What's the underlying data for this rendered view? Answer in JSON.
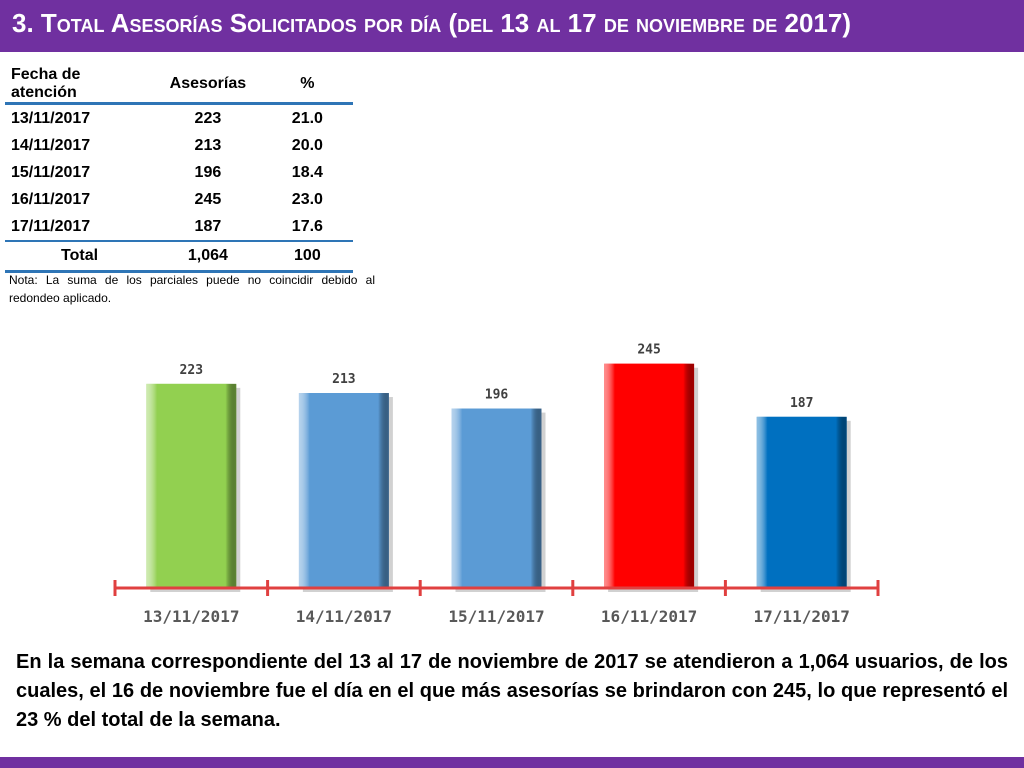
{
  "header": {
    "number": "3.",
    "title_main": "Total Asesorías Solicitados por día",
    "title_sub": "(del 13 al 17 de noviembre de 2017)"
  },
  "table": {
    "headers": [
      "Fecha de atención",
      "Asesorías",
      "%"
    ],
    "rows": [
      [
        "13/11/2017",
        "223",
        "21.0"
      ],
      [
        "14/11/2017",
        "213",
        "20.0"
      ],
      [
        "15/11/2017",
        "196",
        "18.4"
      ],
      [
        "16/11/2017",
        "245",
        "23.0"
      ],
      [
        "17/11/2017",
        "187",
        "17.6"
      ]
    ],
    "total": [
      "Total",
      "1,064",
      "100"
    ]
  },
  "note": "Nota: La suma de los parciales puede no coincidir debido al redondeo aplicado.",
  "chart_data": {
    "type": "bar",
    "title": "",
    "xlabel": "",
    "ylabel": "",
    "categories": [
      "13/11/2017",
      "14/11/2017",
      "15/11/2017",
      "16/11/2017",
      "17/11/2017"
    ],
    "values": [
      223,
      213,
      196,
      245,
      187
    ],
    "colors": [
      "#92d050",
      "#5b9bd5",
      "#5b9bd5",
      "#ff0000",
      "#0070c0"
    ],
    "ylim": [
      0,
      260
    ],
    "grid": false,
    "axis_color": "#e04040",
    "tick_label_color": "#595959"
  },
  "summary": "En la semana correspondiente del 13 al 17 de noviembre de 2017 se atendieron a 1,064 usuarios, de los cuales, el 16 de noviembre fue el día en el que más asesorías se brindaron con 245, lo que representó el 23 % del total de la semana.",
  "colors": {
    "header_bg": "#7030a0",
    "table_rule": "#2e75b6"
  }
}
